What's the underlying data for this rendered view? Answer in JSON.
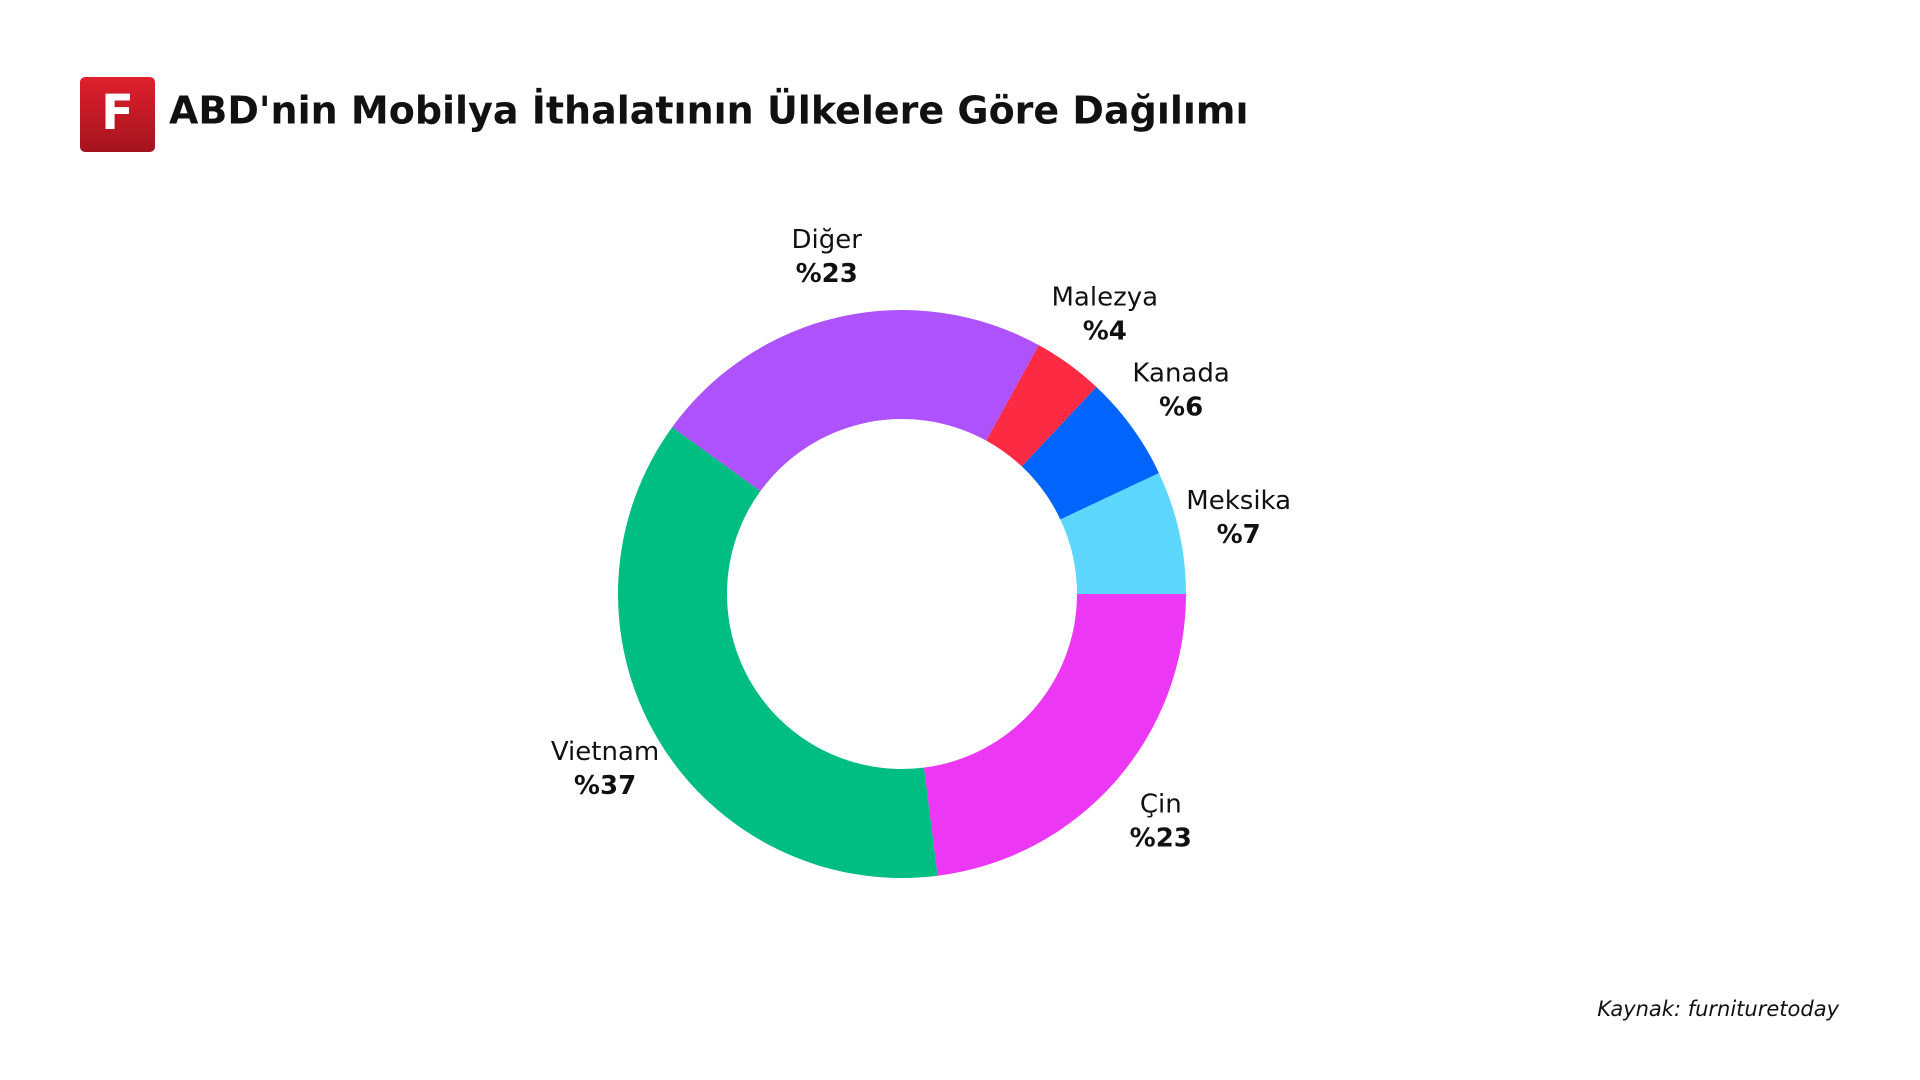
{
  "logo": "F",
  "chart_data": {
    "type": "donut",
    "title": "ABD'nin Mobilya İthalatının Ülkelere Göre Dağılımı",
    "categories": [
      "Çin",
      "Vietnam",
      "Diğer",
      "Malezya",
      "Kanada",
      "Meksika"
    ],
    "values": [
      23,
      37,
      23,
      4,
      6,
      7
    ],
    "value_labels": [
      "%23",
      "%37",
      "%23",
      "%4",
      "%6",
      "%7"
    ],
    "colors": [
      "#ec37f5",
      "#00bd82",
      "#ad52fd",
      "#fd2a43",
      "#0064fd",
      "#5dd7fe"
    ],
    "source": "Kaynak: furnituretoday"
  }
}
